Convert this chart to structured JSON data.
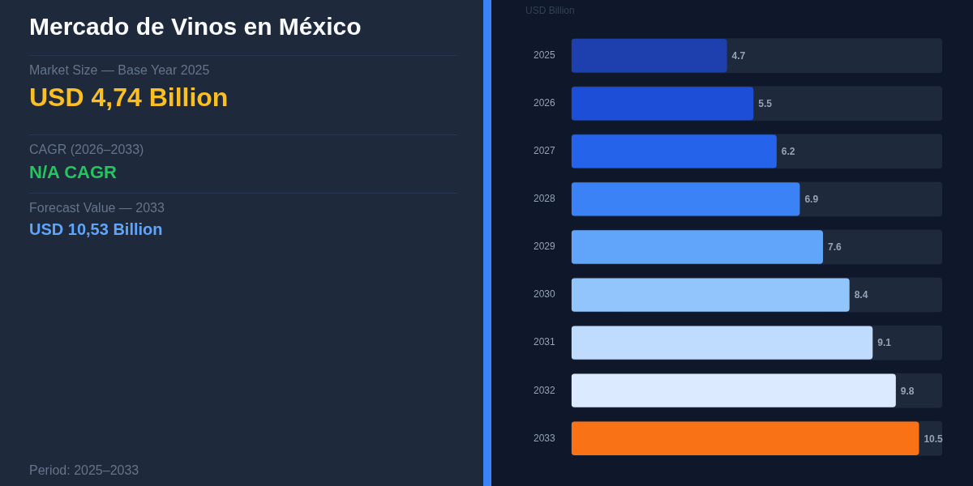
{
  "chart_data": {
    "type": "bar",
    "orientation": "horizontal",
    "title": "Mercado de Vinos en México",
    "xlabel": "USD Billion",
    "annotations": [
      "Market Size — Base Year 2025",
      "USD 4,74 Billion",
      "CAGR (2026–2033)",
      "N/A CAGR",
      "Forecast Value — 2033",
      "USD 10,53 Billion",
      "Period: 2025–2033"
    ],
    "categories": [
      "2025",
      "2026",
      "2027",
      "2028",
      "2029",
      "2030",
      "2031",
      "2032",
      "2033"
    ],
    "values": [
      4.7,
      5.5,
      6.2,
      6.9,
      7.6,
      8.4,
      9.1,
      9.8,
      10.5
    ],
    "colors": [
      "#1e40af",
      "#1d4ed8",
      "#2563eb",
      "#3b82f6",
      "#60a5fa",
      "#93c5fd",
      "#bfdbfe",
      "#dbeafe",
      "#f97316"
    ],
    "xlim": [
      0,
      11.2
    ],
    "data_labels": true,
    "legend": false
  }
}
